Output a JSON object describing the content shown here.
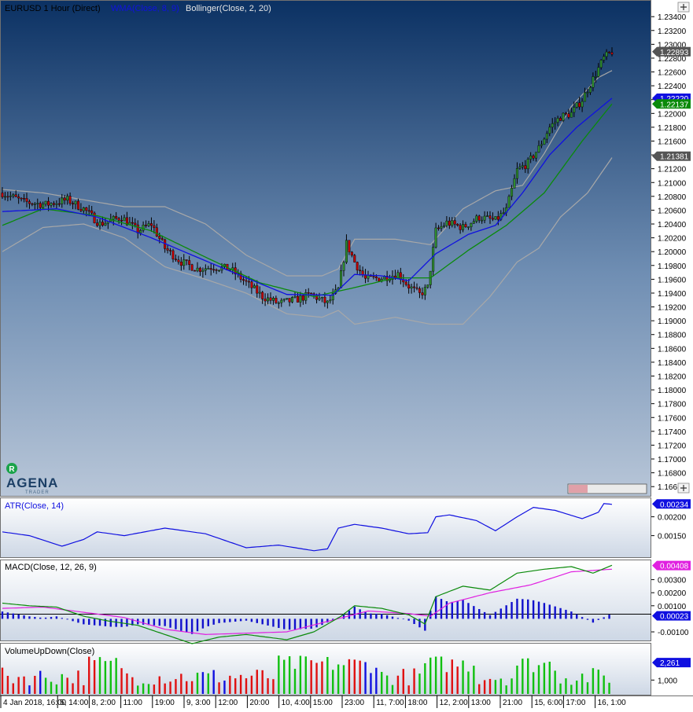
{
  "header": {
    "instrument": "EURUSD 1 Hour (Direct)",
    "indicator_1": "WMA(Close, 8, 9)",
    "indicator_2": "Bollinger(Close, 2, 20)"
  },
  "logo": {
    "badge": "R",
    "text": "AGENA",
    "subtext": "TRADER"
  },
  "colors": {
    "bull": "#2e8b2e",
    "bear": "#c00000",
    "wma": "#1010e0",
    "sma": "#0a8a0a",
    "bollinger": "#a8a8a8",
    "atr": "#1010e0",
    "macd": "#0a8a0a",
    "signal": "#e020e0",
    "hist": "#1010cc",
    "vol_up": "#10c010",
    "vol_down": "#e01010",
    "vol_neutral": "#1010e0"
  },
  "chart_data": [
    {
      "type": "candlestick",
      "panel": "price",
      "title": "EURUSD 1 Hour (Direct)",
      "ylim": [
        1.165,
        1.2355
      ],
      "y_ticks": [
        "1.23400",
        "1.23200",
        "1.23000",
        "1.22800",
        "1.22600",
        "1.22400",
        "1.22200",
        "1.22000",
        "1.21800",
        "1.21600",
        "1.21400",
        "1.21200",
        "1.21000",
        "1.20800",
        "1.20600",
        "1.20400",
        "1.20200",
        "1.20000",
        "1.19800",
        "1.19600",
        "1.19400",
        "1.19200",
        "1.19000",
        "1.18800",
        "1.18600",
        "1.18400",
        "1.18200",
        "1.18000",
        "1.17800",
        "1.17600",
        "1.17400",
        "1.17200",
        "1.17000",
        "1.16800",
        "1.166"
      ],
      "markers": [
        {
          "label": "1.22893",
          "value": 1.22893,
          "color": "#555555"
        },
        {
          "label": "1.22220",
          "value": 1.2222,
          "color": "#1010e0"
        },
        {
          "label": "1.22137",
          "value": 1.22137,
          "color": "#0a8a0a"
        },
        {
          "label": "1.21381",
          "value": 1.21381,
          "color": "#555555"
        }
      ],
      "close_path": [
        [
          0,
          1.2085
        ],
        [
          8,
          1.2072
        ],
        [
          16,
          1.2068
        ],
        [
          24,
          1.2075
        ],
        [
          30,
          1.2062
        ],
        [
          36,
          1.204
        ],
        [
          44,
          1.205
        ],
        [
          50,
          1.203
        ],
        [
          55,
          1.204
        ],
        [
          60,
          1.2005
        ],
        [
          66,
          1.1985
        ],
        [
          72,
          1.1975
        ],
        [
          78,
          1.1978
        ],
        [
          84,
          1.1975
        ],
        [
          90,
          1.1955
        ],
        [
          96,
          1.1935
        ],
        [
          102,
          1.1925
        ],
        [
          108,
          1.193
        ],
        [
          114,
          1.1938
        ],
        [
          120,
          1.1925
        ],
        [
          124,
          1.1945
        ],
        [
          127,
          1.2012
        ],
        [
          130,
          1.1985
        ],
        [
          134,
          1.196
        ],
        [
          140,
          1.1962
        ],
        [
          146,
          1.1968
        ],
        [
          150,
          1.195
        ],
        [
          154,
          1.1938
        ],
        [
          157,
          1.1948
        ],
        [
          160,
          1.203
        ],
        [
          164,
          1.2042
        ],
        [
          170,
          1.2035
        ],
        [
          176,
          1.205
        ],
        [
          182,
          1.2045
        ],
        [
          186,
          1.206
        ],
        [
          190,
          1.2118
        ],
        [
          194,
          1.2128
        ],
        [
          198,
          1.215
        ],
        [
          202,
          1.218
        ],
        [
          206,
          1.2195
        ],
        [
          210,
          1.22
        ],
        [
          214,
          1.222
        ],
        [
          218,
          1.225
        ],
        [
          222,
          1.228
        ],
        [
          225,
          1.22893
        ]
      ],
      "wma_path": [
        [
          0,
          1.2058
        ],
        [
          20,
          1.2062
        ],
        [
          35,
          1.205
        ],
        [
          55,
          1.202
        ],
        [
          70,
          1.1995
        ],
        [
          90,
          1.1962
        ],
        [
          105,
          1.1938
        ],
        [
          122,
          1.1937
        ],
        [
          130,
          1.1967
        ],
        [
          140,
          1.1965
        ],
        [
          150,
          1.1958
        ],
        [
          160,
          1.1997
        ],
        [
          172,
          1.2025
        ],
        [
          182,
          1.2038
        ],
        [
          192,
          1.2085
        ],
        [
          202,
          1.214
        ],
        [
          212,
          1.218
        ],
        [
          225,
          1.2222
        ]
      ],
      "sma_path": [
        [
          0,
          1.2038
        ],
        [
          15,
          1.2062
        ],
        [
          35,
          1.2052
        ],
        [
          55,
          1.203
        ],
        [
          75,
          1.1992
        ],
        [
          95,
          1.1955
        ],
        [
          115,
          1.1935
        ],
        [
          130,
          1.1948
        ],
        [
          145,
          1.1962
        ],
        [
          158,
          1.1962
        ],
        [
          172,
          1.2002
        ],
        [
          186,
          1.2038
        ],
        [
          200,
          1.2085
        ],
        [
          214,
          1.216
        ],
        [
          225,
          1.22137
        ]
      ],
      "bb_upper": [
        [
          0,
          1.209
        ],
        [
          15,
          1.2085
        ],
        [
          30,
          1.2075
        ],
        [
          45,
          1.2065
        ],
        [
          60,
          1.2065
        ],
        [
          75,
          1.204
        ],
        [
          90,
          1.1995
        ],
        [
          105,
          1.1965
        ],
        [
          118,
          1.1965
        ],
        [
          124,
          1.1975
        ],
        [
          130,
          1.2018
        ],
        [
          145,
          1.2018
        ],
        [
          158,
          1.201
        ],
        [
          170,
          1.2062
        ],
        [
          182,
          1.2088
        ],
        [
          192,
          1.2096
        ],
        [
          200,
          1.2142
        ],
        [
          210,
          1.221
        ],
        [
          220,
          1.2252
        ],
        [
          225,
          1.2262
        ]
      ],
      "bb_lower": [
        [
          0,
          1.2
        ],
        [
          15,
          1.2035
        ],
        [
          30,
          1.204
        ],
        [
          45,
          1.202
        ],
        [
          60,
          1.1978
        ],
        [
          75,
          1.196
        ],
        [
          90,
          1.194
        ],
        [
          105,
          1.191
        ],
        [
          118,
          1.1905
        ],
        [
          124,
          1.1915
        ],
        [
          130,
          1.1895
        ],
        [
          145,
          1.1905
        ],
        [
          158,
          1.1895
        ],
        [
          170,
          1.1895
        ],
        [
          180,
          1.1935
        ],
        [
          190,
          1.1985
        ],
        [
          198,
          1.2005
        ],
        [
          206,
          1.205
        ],
        [
          216,
          1.2085
        ],
        [
          225,
          1.2136
        ]
      ]
    },
    {
      "type": "line",
      "panel": "atr",
      "title": "ATR(Close, 14)",
      "ylim": [
        0.00095,
        0.00245
      ],
      "y_ticks": [
        "0.00200",
        "0.00150"
      ],
      "marker": {
        "label": "0.00234",
        "value": 0.00234
      },
      "series": [
        {
          "values": [
            [
              0,
              0.0016
            ],
            [
              10,
              0.0015
            ],
            [
              22,
              0.00122
            ],
            [
              30,
              0.0014
            ],
            [
              35,
              0.0016
            ],
            [
              45,
              0.0015
            ],
            [
              60,
              0.0017
            ],
            [
              75,
              0.00155
            ],
            [
              90,
              0.00118
            ],
            [
              102,
              0.00125
            ],
            [
              115,
              0.0011
            ],
            [
              120,
              0.00115
            ],
            [
              124,
              0.0017
            ],
            [
              130,
              0.0018
            ],
            [
              140,
              0.0017
            ],
            [
              150,
              0.00155
            ],
            [
              157,
              0.00158
            ],
            [
              160,
              0.002
            ],
            [
              165,
              0.00205
            ],
            [
              175,
              0.0019
            ],
            [
              182,
              0.00163
            ],
            [
              190,
              0.002
            ],
            [
              196,
              0.00225
            ],
            [
              204,
              0.00217
            ],
            [
              214,
              0.00195
            ],
            [
              220,
              0.00212
            ],
            [
              222,
              0.00235
            ],
            [
              225,
              0.00233
            ]
          ]
        }
      ]
    },
    {
      "type": "line",
      "panel": "macd",
      "title": "MACD(Close, 12, 26, 9)",
      "ylim": [
        -0.0016,
        0.0043
      ],
      "y_ticks": [
        "0.00300",
        "0.00200",
        "0.00100",
        "-0.00100"
      ],
      "markers": [
        {
          "label": "0.00408",
          "value": 0.00408
        },
        {
          "label": "0.00023",
          "value": 0.00023
        }
      ],
      "series": [
        {
          "values": [
            [
              0,
              0.0012
            ],
            [
              10,
              0.001
            ],
            [
              20,
              0.0009
            ],
            [
              30,
              0.0002
            ],
            [
              40,
              -0.0002
            ],
            [
              50,
              -0.0005
            ],
            [
              60,
              -0.0012
            ],
            [
              70,
              -0.0019
            ],
            [
              80,
              -0.0014
            ],
            [
              90,
              -0.0012
            ],
            [
              105,
              -0.0016
            ],
            [
              115,
              -0.001
            ],
            [
              125,
              0.0002
            ],
            [
              130,
              0.001
            ],
            [
              140,
              0.0008
            ],
            [
              150,
              0.0003
            ],
            [
              156,
              -0.0004
            ],
            [
              160,
              0.0017
            ],
            [
              170,
              0.0025
            ],
            [
              180,
              0.0022
            ],
            [
              190,
              0.0035
            ],
            [
              200,
              0.0038
            ],
            [
              210,
              0.004
            ],
            [
              218,
              0.0035
            ],
            [
              225,
              0.0041
            ]
          ]
        },
        {
          "values": [
            [
              0,
              0.0008
            ],
            [
              15,
              0.0009
            ],
            [
              30,
              0.0005
            ],
            [
              45,
              0.0001
            ],
            [
              60,
              -0.0008
            ],
            [
              75,
              -0.0012
            ],
            [
              90,
              -0.0011
            ],
            [
              105,
              -0.001
            ],
            [
              120,
              -0.0002
            ],
            [
              135,
              0.0006
            ],
            [
              150,
              0.0004
            ],
            [
              158,
              0.0002
            ],
            [
              165,
              0.0012
            ],
            [
              180,
              0.002
            ],
            [
              195,
              0.0026
            ],
            [
              210,
              0.0036
            ],
            [
              225,
              0.0038
            ]
          ]
        }
      ]
    },
    {
      "type": "bar",
      "panel": "volume",
      "title": "VolumeUpDown(Close)",
      "ylim": [
        0,
        3400
      ],
      "y_ticks": [
        "1,000"
      ],
      "marker": {
        "label": "2,261",
        "value": 2261
      }
    }
  ],
  "time_axis": {
    "labels": [
      "4 Jan 2018, 16:00",
      "5, 14:00",
      "8, 2:00",
      "11:00",
      "19:00",
      "9, 3:00",
      "12:00",
      "20:00",
      "10, 4:00",
      "15:00",
      "23:00",
      "11, 7:00",
      "18:00",
      "12, 2:00",
      "13:00",
      "21:00",
      "15, 6:00",
      "17:00",
      "16, 1:00"
    ]
  }
}
